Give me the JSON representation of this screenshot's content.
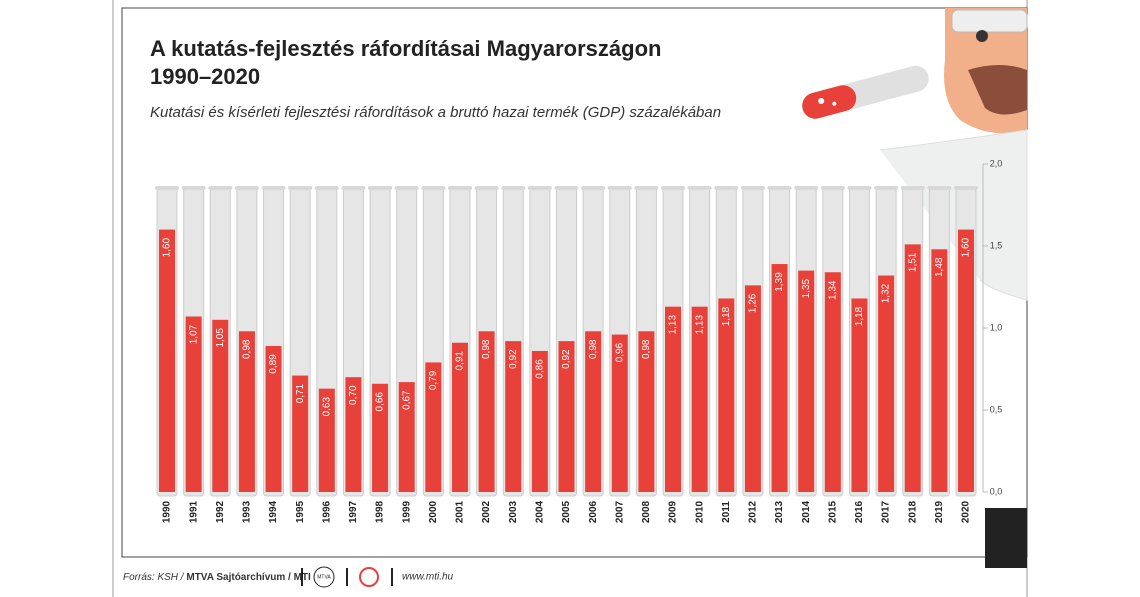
{
  "chart_data": {
    "type": "bar",
    "title": "A kutatás-fejlesztés ráfordításai Magyarországon",
    "title_line2": "1990–2020",
    "subtitle": "Kutatási és kísérleti fejlesztési ráfordítások a bruttó hazai termék (GDP) százalékában",
    "categories": [
      "1990",
      "1991",
      "1992",
      "1993",
      "1994",
      "1995",
      "1996",
      "1997",
      "1998",
      "1999",
      "2000",
      "2001",
      "2002",
      "2003",
      "2004",
      "2005",
      "2006",
      "2007",
      "2008",
      "2009",
      "2010",
      "2011",
      "2012",
      "2013",
      "2014",
      "2015",
      "2016",
      "2017",
      "2018",
      "2019",
      "2020"
    ],
    "values": [
      1.6,
      1.07,
      1.05,
      0.98,
      0.89,
      0.71,
      0.63,
      0.7,
      0.66,
      0.67,
      0.79,
      0.91,
      0.98,
      0.92,
      0.86,
      0.92,
      0.98,
      0.96,
      0.98,
      1.13,
      1.13,
      1.18,
      1.26,
      1.39,
      1.35,
      1.34,
      1.18,
      1.32,
      1.51,
      1.48,
      1.6
    ],
    "value_labels": [
      "1,60",
      "1,07",
      "1,05",
      "0,98",
      "0,89",
      "0,71",
      "0,63",
      "0,70",
      "0,66",
      "0,67",
      "0,79",
      "0,91",
      "0,98",
      "0,92",
      "0,86",
      "0,92",
      "0,98",
      "0,96",
      "0,98",
      "1,13",
      "1,13",
      "1,18",
      "1,26",
      "1,39",
      "1,35",
      "1,34",
      "1,18",
      "1,32",
      "1,51",
      "1,48",
      "1,60"
    ],
    "color": "#e8413a",
    "ylim": [
      0,
      2
    ],
    "yticks": [
      {
        "value": 0,
        "label": "0,0"
      },
      {
        "value": 0.5,
        "label": "0,5"
      },
      {
        "value": 1,
        "label": "1,0"
      },
      {
        "value": 1.5,
        "label": "1,5"
      },
      {
        "value": 2,
        "label": "2,0"
      }
    ],
    "grid": false
  },
  "footer": {
    "source": "Forrás: KSH / ",
    "agency": "MTVA Sajtóarchívum / MTI",
    "url": "www.mti.hu",
    "logo": "MTVA"
  }
}
